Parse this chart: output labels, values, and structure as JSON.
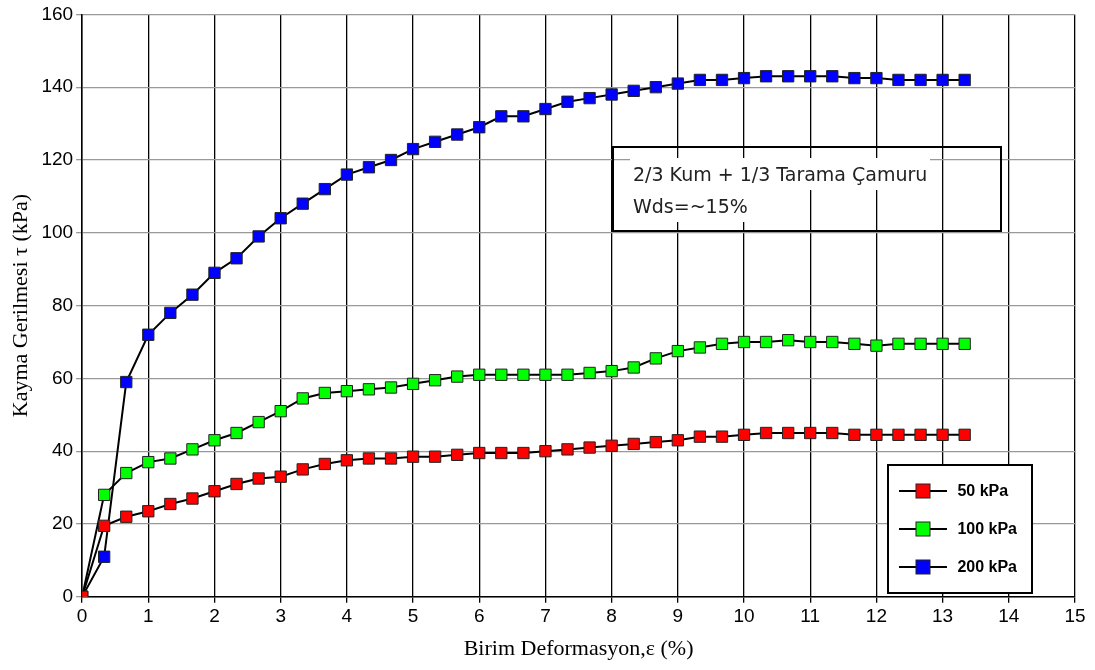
{
  "chart_data": {
    "type": "line",
    "xlabel": "Birim Deformasyon,ε (%)",
    "ylabel": "Kayma Gerilmesi τ (kPa)",
    "x": [
      0,
      0.333,
      0.667,
      1,
      1.333,
      1.667,
      2,
      2.333,
      2.667,
      3,
      3.333,
      3.667,
      4,
      4.333,
      4.667,
      5,
      5.333,
      5.667,
      6,
      6.333,
      6.667,
      7,
      7.333,
      7.667,
      8,
      8.333,
      8.667,
      9,
      9.333,
      9.667,
      10,
      10.333,
      10.667,
      11,
      11.333,
      11.667,
      12,
      12.333,
      12.667,
      13,
      13.333
    ],
    "series": [
      {
        "name": "50 kPa",
        "color": "#ff0000",
        "values": [
          0,
          19.5,
          22,
          23.5,
          25.5,
          27,
          29,
          31,
          32.5,
          33,
          35,
          36.5,
          37.5,
          38,
          38,
          38.5,
          38.5,
          39,
          39.5,
          39.5,
          39.5,
          40,
          40.5,
          41,
          41.5,
          42,
          42.5,
          43,
          44,
          44,
          44.5,
          45,
          45,
          45,
          45,
          44.5,
          44.5,
          44.5,
          44.5,
          44.5,
          44.5
        ]
      },
      {
        "name": "100  kPa",
        "color": "#00ff00",
        "values": [
          0,
          28,
          34,
          37,
          38,
          40.5,
          43,
          45,
          48,
          51,
          54.5,
          56,
          56.5,
          57,
          57.5,
          58.5,
          59.5,
          60.5,
          61,
          61,
          61,
          61,
          61,
          61.5,
          62,
          63,
          65.5,
          67.5,
          68.5,
          69.5,
          70,
          70,
          70.5,
          70,
          70,
          69.5,
          69,
          69.5,
          69.5,
          69.5,
          69.5
        ]
      },
      {
        "name": "200  kPa",
        "color": "#0000ff",
        "values": [
          0,
          11,
          59,
          72,
          78,
          83,
          89,
          93,
          99,
          104,
          108,
          112,
          116,
          118,
          120,
          123,
          125,
          127,
          129,
          132,
          132,
          134,
          136,
          137,
          138,
          139,
          140,
          141,
          142,
          142,
          142.5,
          143,
          143,
          143,
          143,
          142.5,
          142.5,
          142,
          142,
          142,
          142
        ]
      }
    ],
    "xlim": [
      0,
      15
    ],
    "xticks": [
      0,
      1,
      2,
      3,
      4,
      5,
      6,
      7,
      8,
      9,
      10,
      11,
      12,
      13,
      14,
      15
    ],
    "ylim": [
      0,
      160
    ],
    "yticks": [
      0,
      20,
      40,
      60,
      80,
      100,
      120,
      140,
      160
    ],
    "grid": true,
    "legend": "bottom right",
    "marker": "square",
    "line_style": "solid",
    "annotations": [
      "2/3 Kum + 1/3 Tarama Çamuru",
      "Wds=~15%"
    ]
  }
}
